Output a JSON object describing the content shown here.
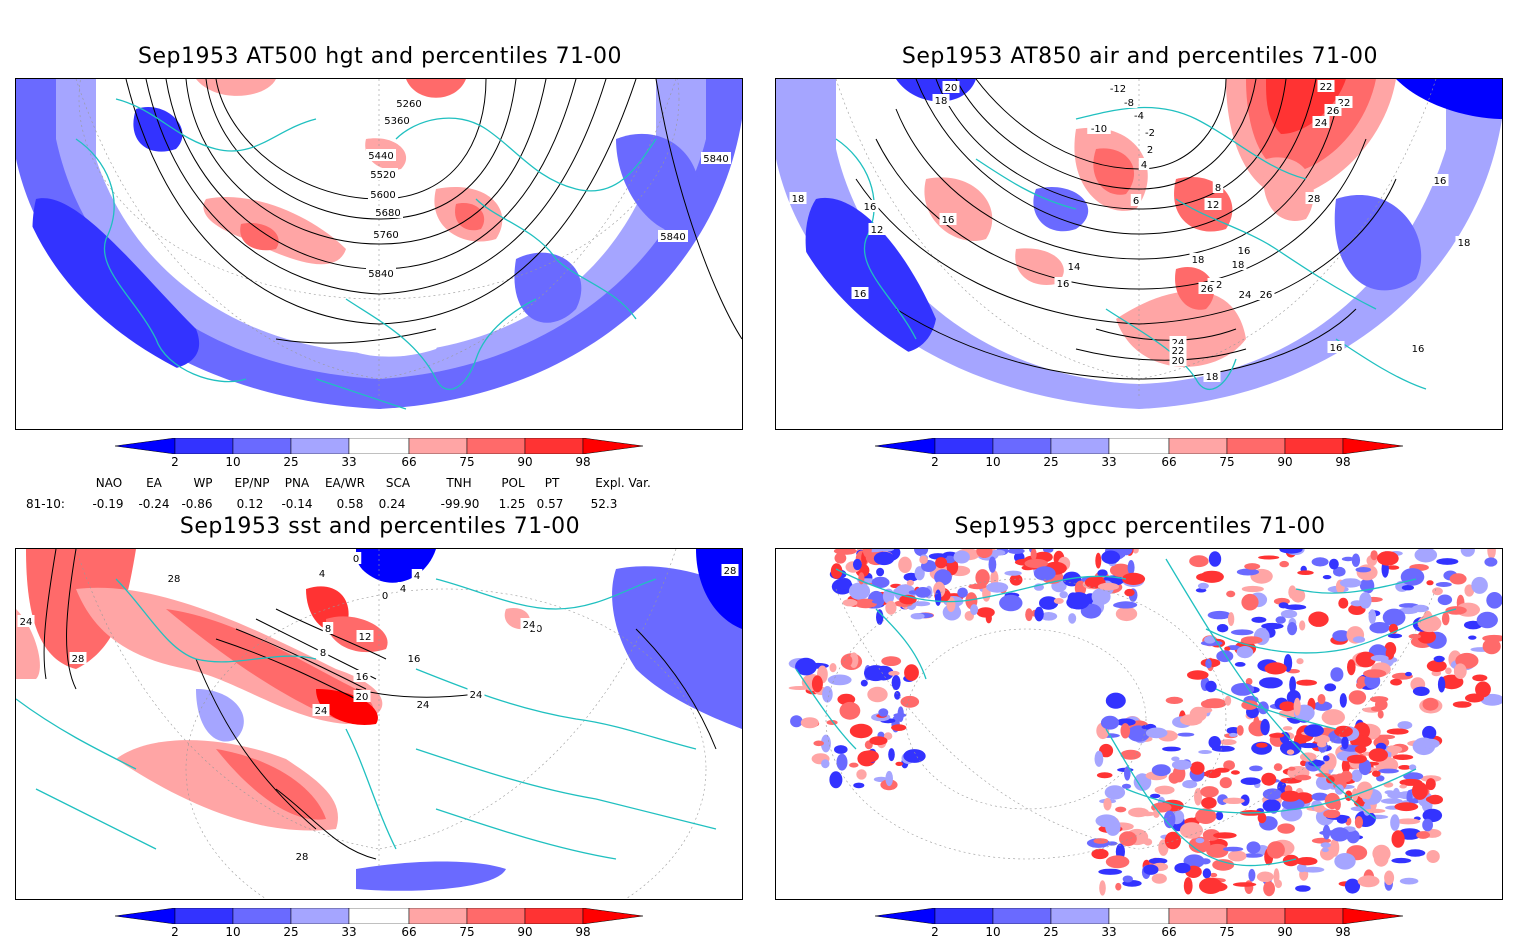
{
  "panels": [
    {
      "id": "p1",
      "title": "Sep1953 AT500 hgt and percentiles 71-00",
      "contour_labels": [
        "5260",
        "5360",
        "5440",
        "5520",
        "5600",
        "5680",
        "5760",
        "5840",
        "5840",
        "5840"
      ]
    },
    {
      "id": "p2",
      "title": "Sep1953 AT850 air and percentiles 71-00",
      "contour_labels": [
        "20",
        "18",
        "-12",
        "-8",
        "-4",
        "-10",
        "-2",
        "2",
        "4",
        "6",
        "8",
        "12",
        "16",
        "18",
        "18",
        "16",
        "16",
        "12",
        "14",
        "16",
        "22",
        "22",
        "24",
        "26",
        "28",
        "16",
        "18",
        "22",
        "26",
        "24",
        "26",
        "24",
        "22",
        "20",
        "18",
        "16",
        "16",
        "18",
        "16"
      ]
    },
    {
      "id": "p3",
      "title": "Sep1953 sst and percentiles 71-00",
      "contour_labels": [
        "28",
        "24",
        "28",
        "0",
        "4",
        "0",
        "4",
        "8",
        "4",
        "8",
        "12",
        "16",
        "16",
        "20",
        "24",
        "20",
        "24",
        "24",
        "24",
        "28",
        "28"
      ]
    },
    {
      "id": "p4",
      "title": "Sep1953 gpcc percentiles 71-00",
      "contour_labels": []
    }
  ],
  "colorbar": {
    "labels": [
      "2",
      "10",
      "25",
      "33",
      "66",
      "75",
      "90",
      "98"
    ],
    "colors": {
      "below2": "#0000ff",
      "b2_10": "#3333ff",
      "b10_25": "#6a6aff",
      "b25_33": "#a5a5ff",
      "neutral": "#ffffff",
      "a66_75": "#ffa5a5",
      "a75_90": "#ff6a6a",
      "a90_98": "#ff3333",
      "above98": "#ff0000"
    }
  },
  "indices": {
    "headers": [
      "NAO",
      "EA",
      "WP",
      "EP/NP",
      "PNA",
      "EA/WR",
      "SCA",
      "TNH",
      "POL",
      "PT",
      "Expl. Var."
    ],
    "row_label": "81-10:",
    "values": [
      "-0.19",
      "-0.24",
      "-0.86",
      "0.12",
      "-0.14",
      "0.58",
      "0.24",
      "-99.90",
      "1.25",
      "0.57",
      "52.3"
    ]
  },
  "colors": {
    "coast": "#20c0c0",
    "contour": "#000000",
    "grid": "#999999"
  }
}
